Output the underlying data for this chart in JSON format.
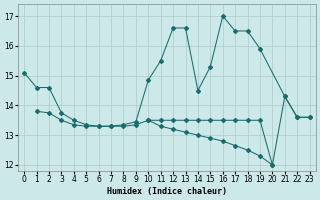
{
  "line_a_x": [
    0,
    1,
    2,
    3,
    4,
    5,
    6,
    7,
    8,
    9,
    10,
    11,
    12,
    13,
    14,
    15,
    16,
    17,
    18,
    19,
    21,
    22,
    23
  ],
  "line_a_y": [
    15.1,
    14.6,
    14.6,
    13.75,
    13.5,
    13.35,
    13.3,
    13.3,
    13.35,
    13.45,
    14.85,
    15.5,
    16.6,
    16.6,
    14.5,
    15.3,
    17.0,
    16.5,
    16.5,
    15.9,
    14.3,
    13.6,
    13.6
  ],
  "line_b_x": [
    1,
    2,
    3,
    4,
    5,
    6,
    7,
    8,
    9,
    10,
    11,
    12,
    13,
    14,
    15,
    16,
    17,
    18,
    19,
    20,
    21,
    22,
    23
  ],
  "line_b_y": [
    13.8,
    13.75,
    13.5,
    13.35,
    13.3,
    13.3,
    13.3,
    13.3,
    13.35,
    13.5,
    13.5,
    13.5,
    13.5,
    13.5,
    13.5,
    13.5,
    13.5,
    13.5,
    13.5,
    12.0,
    14.3,
    13.6,
    13.6
  ],
  "line_c_x": [
    10,
    11,
    12,
    13,
    14,
    15,
    16,
    17,
    18,
    19,
    20
  ],
  "line_c_y": [
    13.5,
    13.3,
    13.2,
    13.1,
    13.0,
    12.9,
    12.8,
    12.65,
    12.5,
    12.3,
    12.0
  ],
  "bg_color": "#cde8e8",
  "grid_color": "#aacccc",
  "line_color": "#1a6b6b",
  "xlabel": "Humidex (Indice chaleur)",
  "ylim": [
    11.8,
    17.4
  ],
  "xlim": [
    -0.5,
    23.5
  ],
  "yticks": [
    12,
    13,
    14,
    15,
    16,
    17
  ],
  "xticks": [
    0,
    1,
    2,
    3,
    4,
    5,
    6,
    7,
    8,
    9,
    10,
    11,
    12,
    13,
    14,
    15,
    16,
    17,
    18,
    19,
    20,
    21,
    22,
    23
  ]
}
